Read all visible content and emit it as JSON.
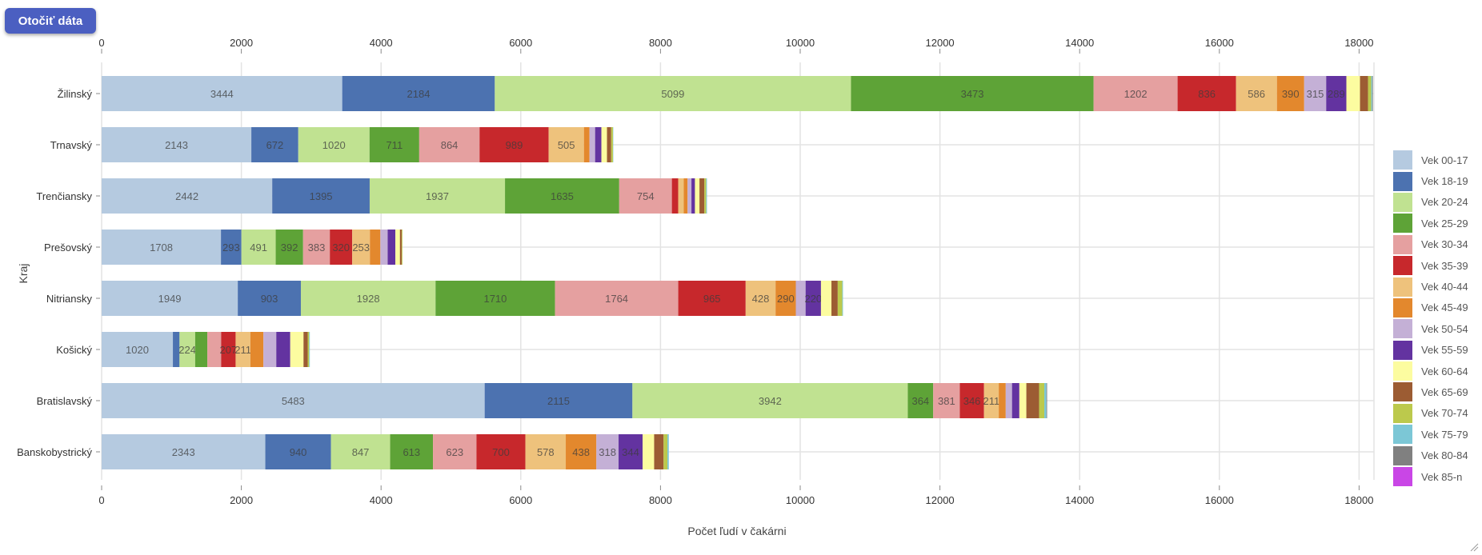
{
  "toolbar": {
    "toggle_label": "Otočiť dáta"
  },
  "chart_data": {
    "type": "bar",
    "orientation": "horizontal",
    "stacked": true,
    "title": "",
    "xlabel": "Počet ľudí v čakárni",
    "ylabel": "Kraj",
    "xlim": [
      0,
      18200
    ],
    "xticks": [
      0,
      2000,
      4000,
      6000,
      8000,
      10000,
      12000,
      14000,
      16000,
      18000
    ],
    "grid": true,
    "legend_position": "right",
    "categories": [
      "Žilinský",
      "Trnavský",
      "Trenčiansky",
      "Prešovský",
      "Nitriansky",
      "Košický",
      "Bratislavský",
      "Banskobystrický"
    ],
    "series": [
      {
        "name": "Vek 00-17",
        "color": "#b5cae0",
        "values": [
          3444,
          2143,
          2442,
          1708,
          1949,
          1020,
          5483,
          2343
        ]
      },
      {
        "name": "Vek 18-19",
        "color": "#4c72b0",
        "values": [
          2184,
          672,
          1395,
          293,
          903,
          95,
          2115,
          940
        ]
      },
      {
        "name": "Vek 20-24",
        "color": "#c0e291",
        "values": [
          5099,
          1020,
          1937,
          491,
          1928,
          224,
          3942,
          847
        ]
      },
      {
        "name": "Vek 25-29",
        "color": "#5ea337",
        "values": [
          3473,
          711,
          1635,
          392,
          1710,
          175,
          364,
          613
        ]
      },
      {
        "name": "Vek 30-34",
        "color": "#e5a0a0",
        "values": [
          1202,
          864,
          754,
          383,
          1764,
          197,
          381,
          623
        ]
      },
      {
        "name": "Vek 35-39",
        "color": "#c7282c",
        "values": [
          836,
          989,
          90,
          320,
          965,
          207,
          346,
          700
        ]
      },
      {
        "name": "Vek 40-44",
        "color": "#eec27c",
        "values": [
          586,
          505,
          80,
          253,
          428,
          211,
          211,
          578
        ]
      },
      {
        "name": "Vek 45-49",
        "color": "#e3882d",
        "values": [
          390,
          80,
          55,
          150,
          290,
          187,
          100,
          438
        ]
      },
      {
        "name": "Vek 50-54",
        "color": "#c4b0d6",
        "values": [
          315,
          80,
          55,
          105,
          140,
          184,
          90,
          318
        ]
      },
      {
        "name": "Vek 55-59",
        "color": "#6333a0",
        "values": [
          289,
          90,
          50,
          110,
          220,
          200,
          105,
          344
        ]
      },
      {
        "name": "Vek 60-64",
        "color": "#fcfca0",
        "values": [
          195,
          80,
          65,
          65,
          150,
          190,
          100,
          165
        ]
      },
      {
        "name": "Vek 65-69",
        "color": "#9c5c33",
        "values": [
          115,
          60,
          70,
          25,
          90,
          60,
          182,
          135
        ]
      },
      {
        "name": "Vek 70-74",
        "color": "#bcc94c",
        "values": [
          45,
          25,
          25,
          10,
          65,
          20,
          75,
          55
        ]
      },
      {
        "name": "Vek 75-79",
        "color": "#7cc7d6",
        "values": [
          15,
          5,
          12,
          0,
          10,
          10,
          30,
          20
        ]
      },
      {
        "name": "Vek 80-84",
        "color": "#808080",
        "values": [
          10,
          0,
          0,
          0,
          0,
          0,
          10,
          0
        ]
      },
      {
        "name": "Vek 85-n",
        "color": "#c946e6",
        "values": [
          0,
          0,
          0,
          0,
          0,
          0,
          0,
          0
        ]
      }
    ]
  }
}
